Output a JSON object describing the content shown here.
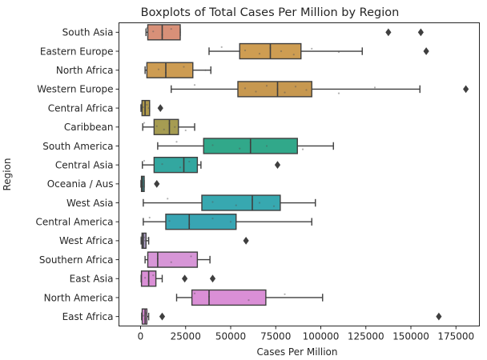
{
  "chart_data": {
    "type": "boxplot",
    "orientation": "horizontal",
    "title": "Boxplots of Total Cases Per Million by Region",
    "xlabel": "Cases Per Million",
    "ylabel": "Region",
    "xlim": [
      -12000,
      188000
    ],
    "xticks": [
      0,
      25000,
      50000,
      75000,
      100000,
      125000,
      150000,
      175000
    ],
    "xtick_labels": [
      "0",
      "25000",
      "50000",
      "75000",
      "100000",
      "125000",
      "150000",
      "175000"
    ],
    "grid": false,
    "legend": "none",
    "series": [
      {
        "category": "South Asia",
        "color": "#d89078",
        "whislo": 3000,
        "q1": 4000,
        "median": 12000,
        "q3": 22000,
        "whishi": 22000,
        "fliers": [
          137500,
          155500
        ],
        "points": [
          3500,
          7000,
          12000,
          17000,
          22000
        ]
      },
      {
        "category": "Eastern Europe",
        "color": "#ce9d52",
        "whislo": 38000,
        "q1": 55000,
        "median": 72000,
        "q3": 89000,
        "whishi": 123000,
        "fliers": [
          158500
        ],
        "points": [
          45000,
          58000,
          66000,
          72000,
          78000,
          85000,
          95000,
          110000
        ]
      },
      {
        "category": "North Africa",
        "color": "#cd9c52",
        "whislo": 2500,
        "q1": 3500,
        "median": 14000,
        "q3": 29000,
        "whishi": 39000,
        "fliers": [],
        "points": [
          3500,
          10000,
          14000,
          24000,
          36000
        ]
      },
      {
        "category": "Western Europe",
        "color": "#c79850",
        "whislo": 17000,
        "q1": 54000,
        "median": 76000,
        "q3": 95000,
        "whishi": 155000,
        "fliers": [
          180500
        ],
        "points": [
          30000,
          58000,
          64000,
          70000,
          76000,
          80000,
          86000,
          92000,
          110000,
          130000
        ]
      },
      {
        "category": "Central Africa",
        "color": "#b09a4b",
        "whislo": 200,
        "q1": 800,
        "median": 2500,
        "q3": 5000,
        "whishi": 5000,
        "fliers": [
          11000
        ],
        "points": [
          600,
          1500,
          2500,
          3500,
          4500
        ]
      },
      {
        "category": "Caribbean",
        "color": "#a69c52",
        "whislo": 1200,
        "q1": 7500,
        "median": 16000,
        "q3": 21000,
        "whishi": 30000,
        "fliers": [],
        "points": [
          2000,
          9000,
          13000,
          16000,
          19000,
          25000
        ]
      },
      {
        "category": "South America",
        "color": "#31a88a",
        "whislo": 9500,
        "q1": 35000,
        "median": 61000,
        "q3": 87000,
        "whishi": 107000,
        "fliers": [],
        "points": [
          20000,
          40000,
          55000,
          61000,
          70000,
          90000
        ]
      },
      {
        "category": "Central Asia",
        "color": "#33a7a0",
        "whislo": 1000,
        "q1": 7500,
        "median": 24000,
        "q3": 31500,
        "whishi": 33500,
        "fliers": [
          76000
        ],
        "points": [
          2000,
          12000,
          22000,
          27000,
          32000
        ]
      },
      {
        "category": "Oceania / Aus",
        "color": "#34a6a7",
        "whislo": 200,
        "q1": 500,
        "median": 1000,
        "q3": 2000,
        "whishi": 2000,
        "fliers": [
          9000
        ],
        "points": [
          500,
          1000,
          1500
        ]
      },
      {
        "category": "West Asia",
        "color": "#37a8b0",
        "whislo": 1500,
        "q1": 34000,
        "median": 62000,
        "q3": 77500,
        "whishi": 97000,
        "fliers": [],
        "points": [
          15000,
          40000,
          53000,
          62000,
          66000,
          74000
        ]
      },
      {
        "category": "Central America",
        "color": "#38a5b3",
        "whislo": 1500,
        "q1": 14000,
        "median": 27000,
        "q3": 53000,
        "whishi": 95000,
        "fliers": [],
        "points": [
          5000,
          16000,
          27000,
          40000,
          50000
        ]
      },
      {
        "category": "West Africa",
        "color": "#b6a6cf",
        "whislo": 300,
        "q1": 800,
        "median": 1500,
        "q3": 3000,
        "whishi": 4500,
        "fliers": [
          58500
        ],
        "points": [
          500,
          1000,
          1500,
          2000,
          2500,
          3000,
          4000
        ]
      },
      {
        "category": "Southern Africa",
        "color": "#d796d7",
        "whislo": 2500,
        "q1": 4000,
        "median": 9500,
        "q3": 31500,
        "whishi": 38500,
        "fliers": [],
        "points": [
          4000,
          9500,
          17000,
          28000
        ]
      },
      {
        "category": "East Asia",
        "color": "#da8fd6",
        "whislo": 300,
        "q1": 500,
        "median": 4500,
        "q3": 8500,
        "whishi": 12000,
        "fliers": [
          24500,
          40000
        ],
        "points": [
          500,
          2500,
          4500,
          7000
        ]
      },
      {
        "category": "North America",
        "color": "#da8fd6",
        "whislo": 20000,
        "q1": 28500,
        "median": 38000,
        "q3": 69500,
        "whishi": 101000,
        "fliers": [],
        "points": [
          30000,
          38000,
          60000,
          80000
        ]
      },
      {
        "category": "East Africa",
        "color": "#dd8fd8",
        "whislo": 600,
        "q1": 900,
        "median": 2500,
        "q3": 3500,
        "whishi": 4500,
        "fliers": [
          12000,
          165500
        ],
        "points": [
          800,
          1500,
          2500,
          3000,
          4000
        ]
      }
    ]
  }
}
